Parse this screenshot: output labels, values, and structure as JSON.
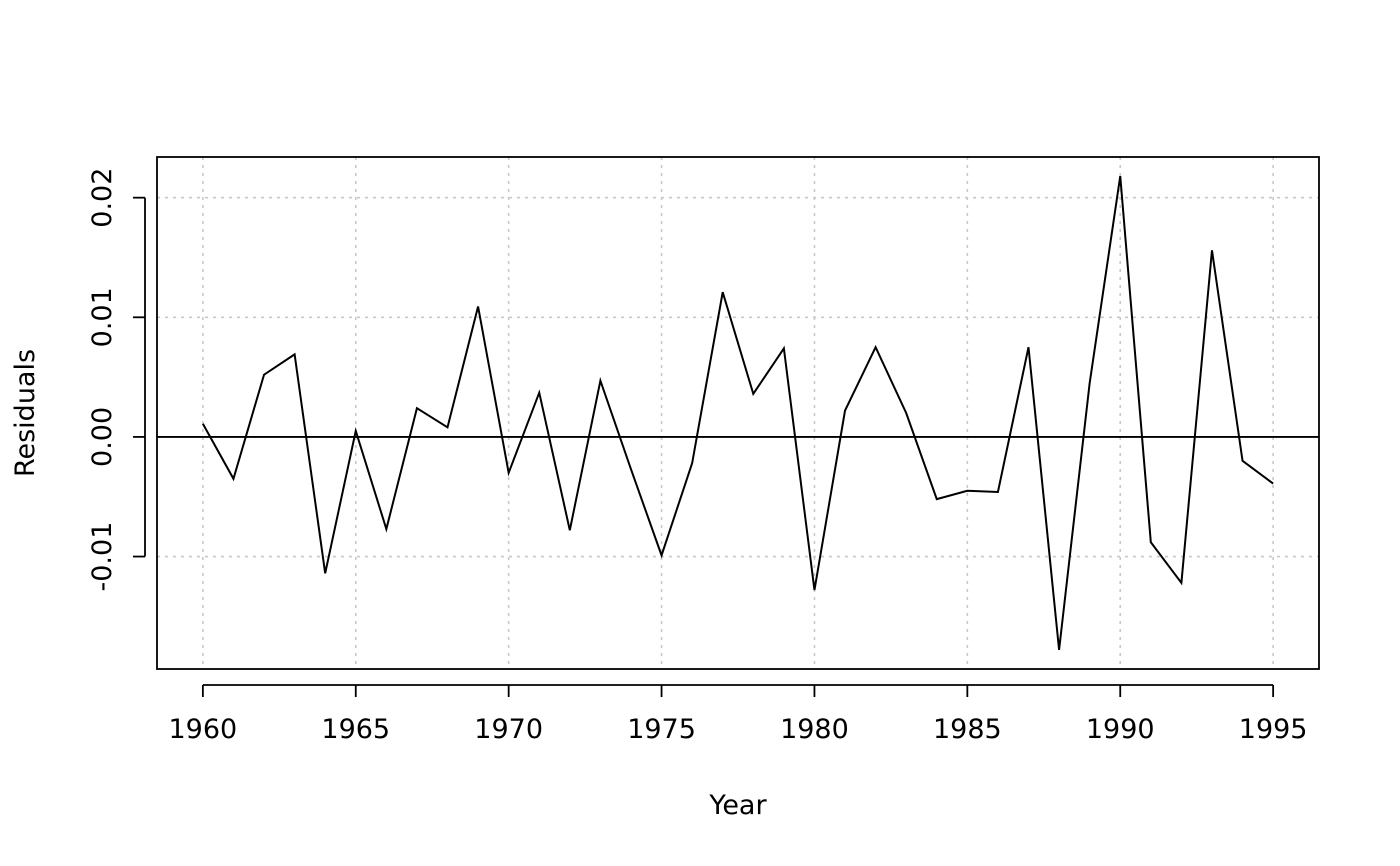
{
  "chart_data": {
    "type": "line",
    "title": "",
    "xlabel": "Year",
    "ylabel": "Residuals",
    "xlim": [
      1958.5,
      1996.5
    ],
    "ylim": [
      -0.0194,
      0.0234
    ],
    "x_ticks": [
      1960,
      1965,
      1970,
      1975,
      1980,
      1985,
      1990,
      1995
    ],
    "x_tick_labels": [
      "1960",
      "1965",
      "1970",
      "1975",
      "1980",
      "1985",
      "1990",
      "1995"
    ],
    "y_ticks": [
      -0.01,
      0.0,
      0.01,
      0.02
    ],
    "y_tick_labels": [
      "-0.01",
      "0.00",
      "0.01",
      "0.02"
    ],
    "grid": true,
    "grid_style": "dotted",
    "reference_line": 0,
    "line_color": "#000000",
    "grid_color": "#c8c8c8",
    "series": [
      {
        "x": [
          1960,
          1961,
          1962,
          1963,
          1964,
          1965,
          1966,
          1967,
          1968,
          1969,
          1970,
          1971,
          1972,
          1973,
          1974,
          1975,
          1976,
          1977,
          1978,
          1979,
          1980,
          1981,
          1982,
          1983,
          1984,
          1985,
          1986,
          1987,
          1988,
          1989,
          1990,
          1991,
          1992,
          1993,
          1994,
          1995
        ],
        "values": [
          0.0011,
          -0.0035,
          0.0052,
          0.0069,
          -0.0114,
          0.0005,
          -0.0077,
          0.0024,
          0.0008,
          0.0109,
          -0.003,
          0.0037,
          -0.0078,
          0.0047,
          -0.0027,
          -0.0099,
          -0.0022,
          0.0121,
          0.0036,
          0.0074,
          -0.0128,
          0.0022,
          0.0075,
          0.002,
          -0.0052,
          -0.0045,
          -0.0046,
          0.0075,
          -0.0178,
          0.0045,
          0.0218,
          -0.0088,
          -0.0122,
          0.0156,
          -0.002,
          -0.0039
        ]
      }
    ]
  }
}
